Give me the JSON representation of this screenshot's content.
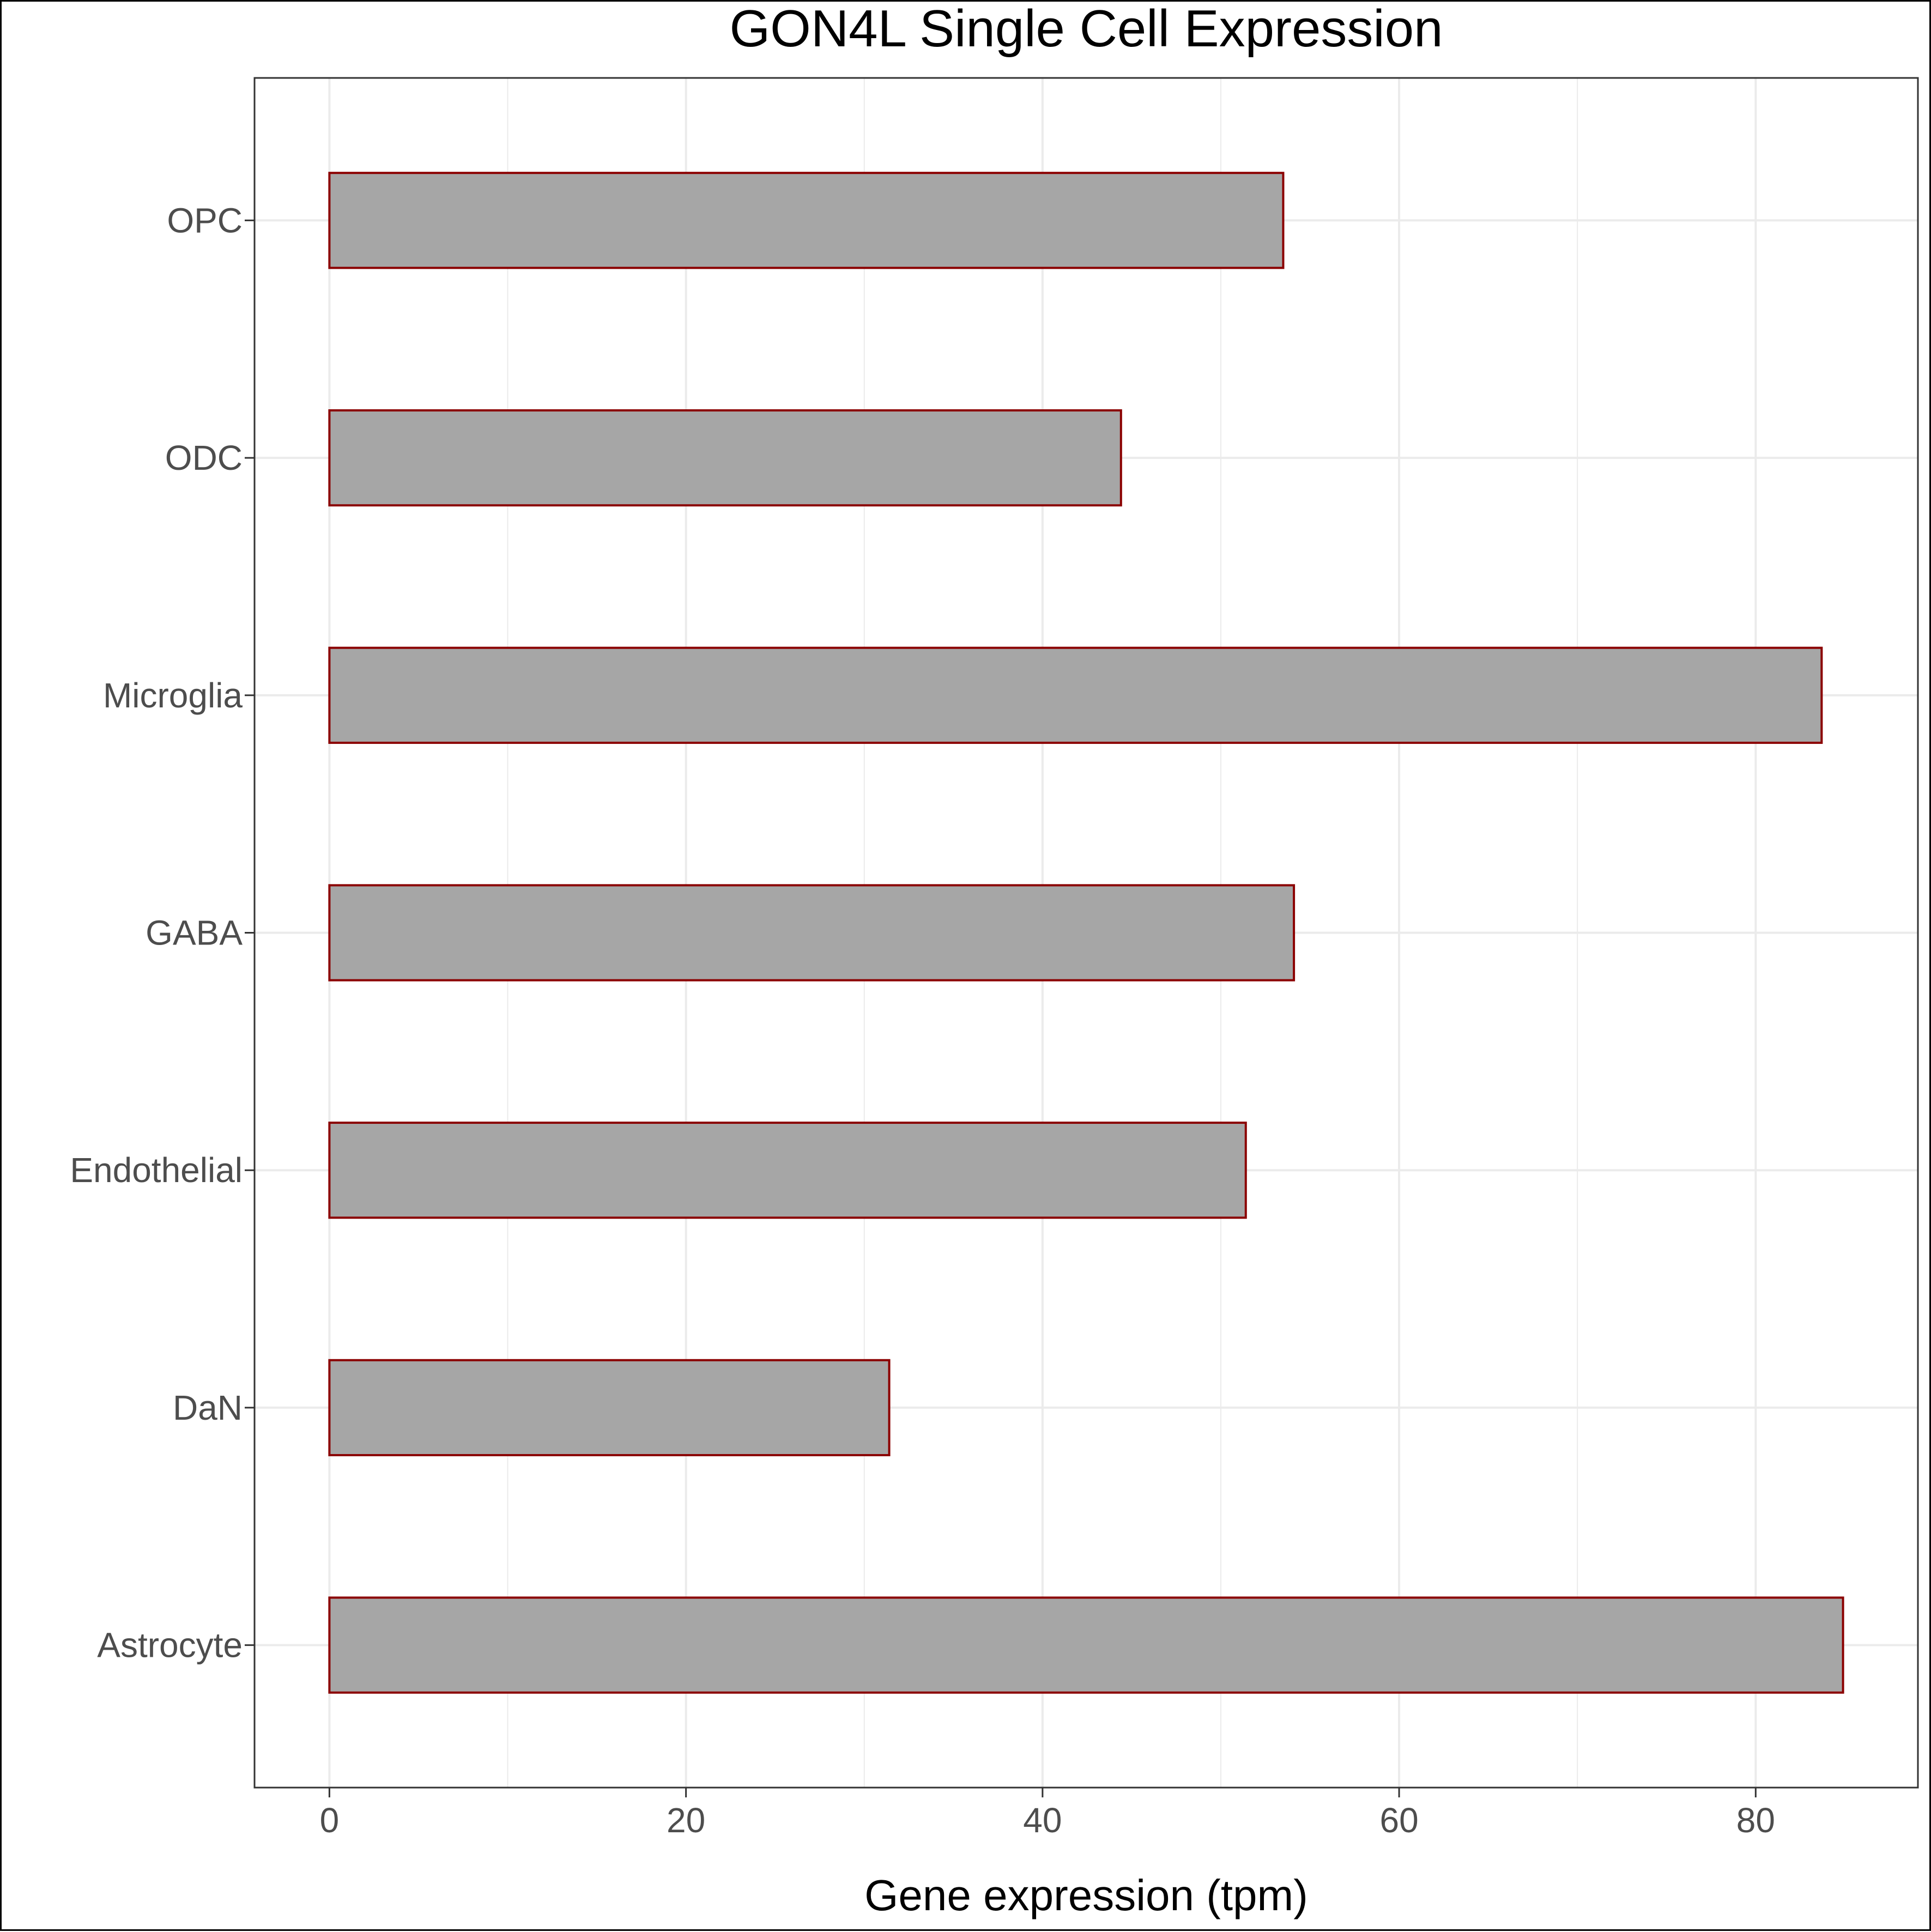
{
  "chart_data": {
    "type": "bar",
    "orientation": "horizontal",
    "title": "GON4L Single Cell Expression",
    "xlabel": "Gene expression (tpm)",
    "ylabel": "",
    "categories": [
      "Astrocyte",
      "DaN",
      "Endothelial",
      "GABA",
      "Microglia",
      "ODC",
      "OPC"
    ],
    "values": [
      84.9,
      31.4,
      51.4,
      54.1,
      83.7,
      44.4,
      53.5
    ],
    "xlim": [
      -4.2,
      89.1
    ],
    "xticks": [
      0,
      20,
      40,
      60,
      80
    ],
    "grid": true,
    "legend": "none",
    "colors": {
      "bar_fill": "#a6a6a6",
      "bar_stroke": "#8b0000",
      "grid": "#ebebeb",
      "tick_label": "#4d4d4d",
      "text": "#000000"
    }
  }
}
